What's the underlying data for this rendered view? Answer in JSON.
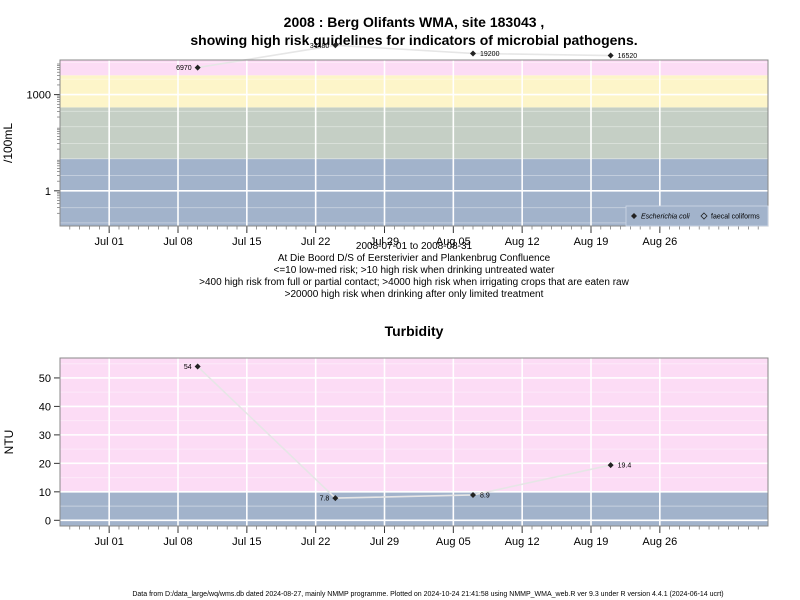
{
  "header": {
    "title_line1": "2008 : Berg Olifants WMA, site 183043 ,",
    "title_line2": "showing high risk guidelines for indicators of microbial pathogens."
  },
  "footer": {
    "text": "Data from D:/data_large/wq/wms.db dated 2024-08-27, mainly NMMP programme. Plotted on 2024-10-24 21:41:58 using NMMP_WMA_web.R ver 9.3 under R version 4.4.1 (2024-06-14 ucrt)"
  },
  "chart_data": [
    {
      "type": "line",
      "ylabel": "/100mL",
      "scale": "log10",
      "ylim": [
        0.08,
        12000
      ],
      "x_range": [
        "2008-06-26",
        "2008-09-06"
      ],
      "x_ticks": [
        "Jul 01",
        "Jul 08",
        "Jul 15",
        "Jul 22",
        "Jul 29",
        "Aug 05",
        "Aug 12",
        "Aug 19",
        "Aug 26"
      ],
      "y_ticks": [
        1,
        1000
      ],
      "grid": true,
      "legend_position": "bottom-right",
      "bands": [
        {
          "from": 0.08,
          "to": 10,
          "color": "#a2b3cb"
        },
        {
          "from": 10,
          "to": 400,
          "color": "#c5cfc5"
        },
        {
          "from": 400,
          "to": 4000,
          "color": "#fdf5c9"
        },
        {
          "from": 4000,
          "to": 20000,
          "color": "#fcdcf5"
        },
        {
          "from": 20000,
          "to": 12000,
          "color": "#f8b6c4"
        }
      ],
      "series": [
        {
          "name": "Escherichia coli",
          "marker": "filled-diamond",
          "points": [
            {
              "x": "2008-07-10",
              "y": 6970,
              "label": "6970"
            },
            {
              "x": "2008-07-24",
              "y": 34480,
              "label": "34480"
            },
            {
              "x": "2008-08-07",
              "y": 19200,
              "label": "19200"
            },
            {
              "x": "2008-08-21",
              "y": 16520,
              "label": "16520"
            }
          ]
        },
        {
          "name": "faecal coliforms",
          "marker": "open-diamond",
          "points": []
        }
      ],
      "range_text": "2008-07-01 to 2008-08-31",
      "notes": [
        "At Die Boord D/S of Eersterivier and Plankenbrug Confluence",
        "<=10 low-med risk; >10 high risk when drinking untreated water",
        ">400 high risk from full or partial contact; >4000 high risk when irrigating crops that are eaten raw",
        ">20000 high risk when drinking after only limited treatment"
      ]
    },
    {
      "type": "line",
      "title": "Turbidity",
      "ylabel": "NTU",
      "ylim": [
        -2,
        57
      ],
      "x_range": [
        "2008-06-26",
        "2008-09-06"
      ],
      "x_ticks": [
        "Jul 01",
        "Jul 08",
        "Jul 15",
        "Jul 22",
        "Jul 29",
        "Aug 05",
        "Aug 12",
        "Aug 19",
        "Aug 26"
      ],
      "y_ticks": [
        0,
        10,
        20,
        30,
        40,
        50
      ],
      "grid": true,
      "bands": [
        {
          "from": -2,
          "to": 10,
          "color": "#a2b3cb"
        },
        {
          "from": 10,
          "to": 57,
          "color": "#fcdcf5"
        }
      ],
      "series": [
        {
          "name": "",
          "marker": "filled-diamond",
          "points": [
            {
              "x": "2008-07-10",
              "y": 54,
              "label": "54"
            },
            {
              "x": "2008-07-24",
              "y": 7.8,
              "label": "7.8"
            },
            {
              "x": "2008-08-07",
              "y": 8.9,
              "label": "8.9"
            },
            {
              "x": "2008-08-21",
              "y": 19.4,
              "label": "19.4"
            }
          ]
        }
      ]
    }
  ]
}
